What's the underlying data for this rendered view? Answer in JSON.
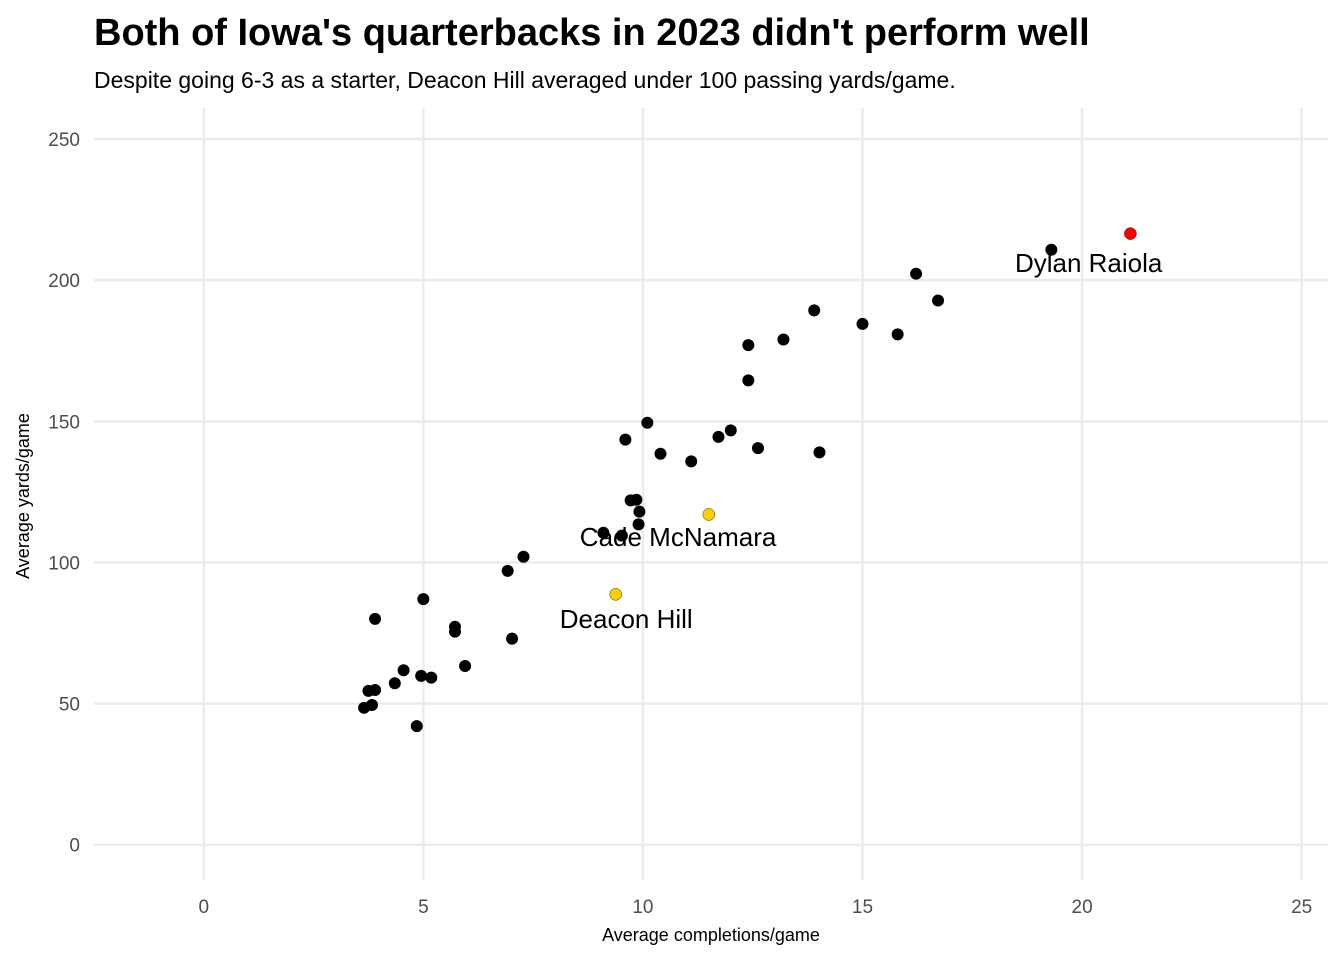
{
  "chart_data": {
    "type": "scatter",
    "title": "Both of Iowa's quarterbacks in 2023 didn't perform well",
    "subtitle": "Despite going 6-3 as a starter, Deacon Hill averaged under 100 passing yards/game.",
    "xlabel": "Average completions/game",
    "ylabel": "Average yards/game",
    "xlim": [
      -2.5,
      25.6
    ],
    "ylim": [
      -12.5,
      261
    ],
    "xticks": [
      0,
      5,
      10,
      15,
      20,
      25
    ],
    "yticks": [
      0,
      50,
      100,
      150,
      200,
      250
    ],
    "grid": true,
    "legend": "none",
    "colors": {
      "default": "#000000",
      "iowa": "#FFCD00",
      "highlight": "#FF0000"
    },
    "points": [
      {
        "x": 3.65,
        "y": 48.5
      },
      {
        "x": 3.83,
        "y": 49.5
      },
      {
        "x": 3.75,
        "y": 54.5
      },
      {
        "x": 3.9,
        "y": 54.8
      },
      {
        "x": 3.9,
        "y": 80
      },
      {
        "x": 4.35,
        "y": 57.2
      },
      {
        "x": 4.55,
        "y": 61.8
      },
      {
        "x": 4.85,
        "y": 42
      },
      {
        "x": 4.95,
        "y": 59.8
      },
      {
        "x": 5.0,
        "y": 87
      },
      {
        "x": 5.18,
        "y": 59.2
      },
      {
        "x": 5.72,
        "y": 77.2
      },
      {
        "x": 5.72,
        "y": 75.5
      },
      {
        "x": 5.95,
        "y": 63.3
      },
      {
        "x": 6.92,
        "y": 97
      },
      {
        "x": 7.02,
        "y": 73
      },
      {
        "x": 7.28,
        "y": 102
      },
      {
        "x": 9.1,
        "y": 110.5
      },
      {
        "x": 9.52,
        "y": 109.5
      },
      {
        "x": 9.6,
        "y": 143.5
      },
      {
        "x": 9.72,
        "y": 122
      },
      {
        "x": 9.85,
        "y": 122.2
      },
      {
        "x": 9.92,
        "y": 118
      },
      {
        "x": 9.9,
        "y": 113.5
      },
      {
        "x": 10.1,
        "y": 149.5
      },
      {
        "x": 10.4,
        "y": 138.5
      },
      {
        "x": 11.1,
        "y": 135.8
      },
      {
        "x": 11.72,
        "y": 144.5
      },
      {
        "x": 12.0,
        "y": 146.8
      },
      {
        "x": 12.4,
        "y": 177
      },
      {
        "x": 12.4,
        "y": 164.5
      },
      {
        "x": 12.62,
        "y": 140.5
      },
      {
        "x": 13.2,
        "y": 179
      },
      {
        "x": 13.9,
        "y": 189.3
      },
      {
        "x": 14.02,
        "y": 139
      },
      {
        "x": 15.0,
        "y": 184.5
      },
      {
        "x": 15.8,
        "y": 180.8
      },
      {
        "x": 16.22,
        "y": 202.3
      },
      {
        "x": 16.72,
        "y": 192.8
      },
      {
        "x": 19.3,
        "y": 210.8
      },
      {
        "x": 9.38,
        "y": 88.7,
        "group": "iowa"
      },
      {
        "x": 11.5,
        "y": 117,
        "group": "iowa"
      },
      {
        "x": 21.1,
        "y": 216.5,
        "group": "highlight"
      }
    ],
    "annotations": [
      {
        "text": "Dylan Raiola",
        "x": 20.15,
        "y": 206
      },
      {
        "text": "Cade McNamara",
        "x": 10.8,
        "y": 109
      },
      {
        "text": "Deacon Hill",
        "x": 9.62,
        "y": 80
      }
    ]
  }
}
